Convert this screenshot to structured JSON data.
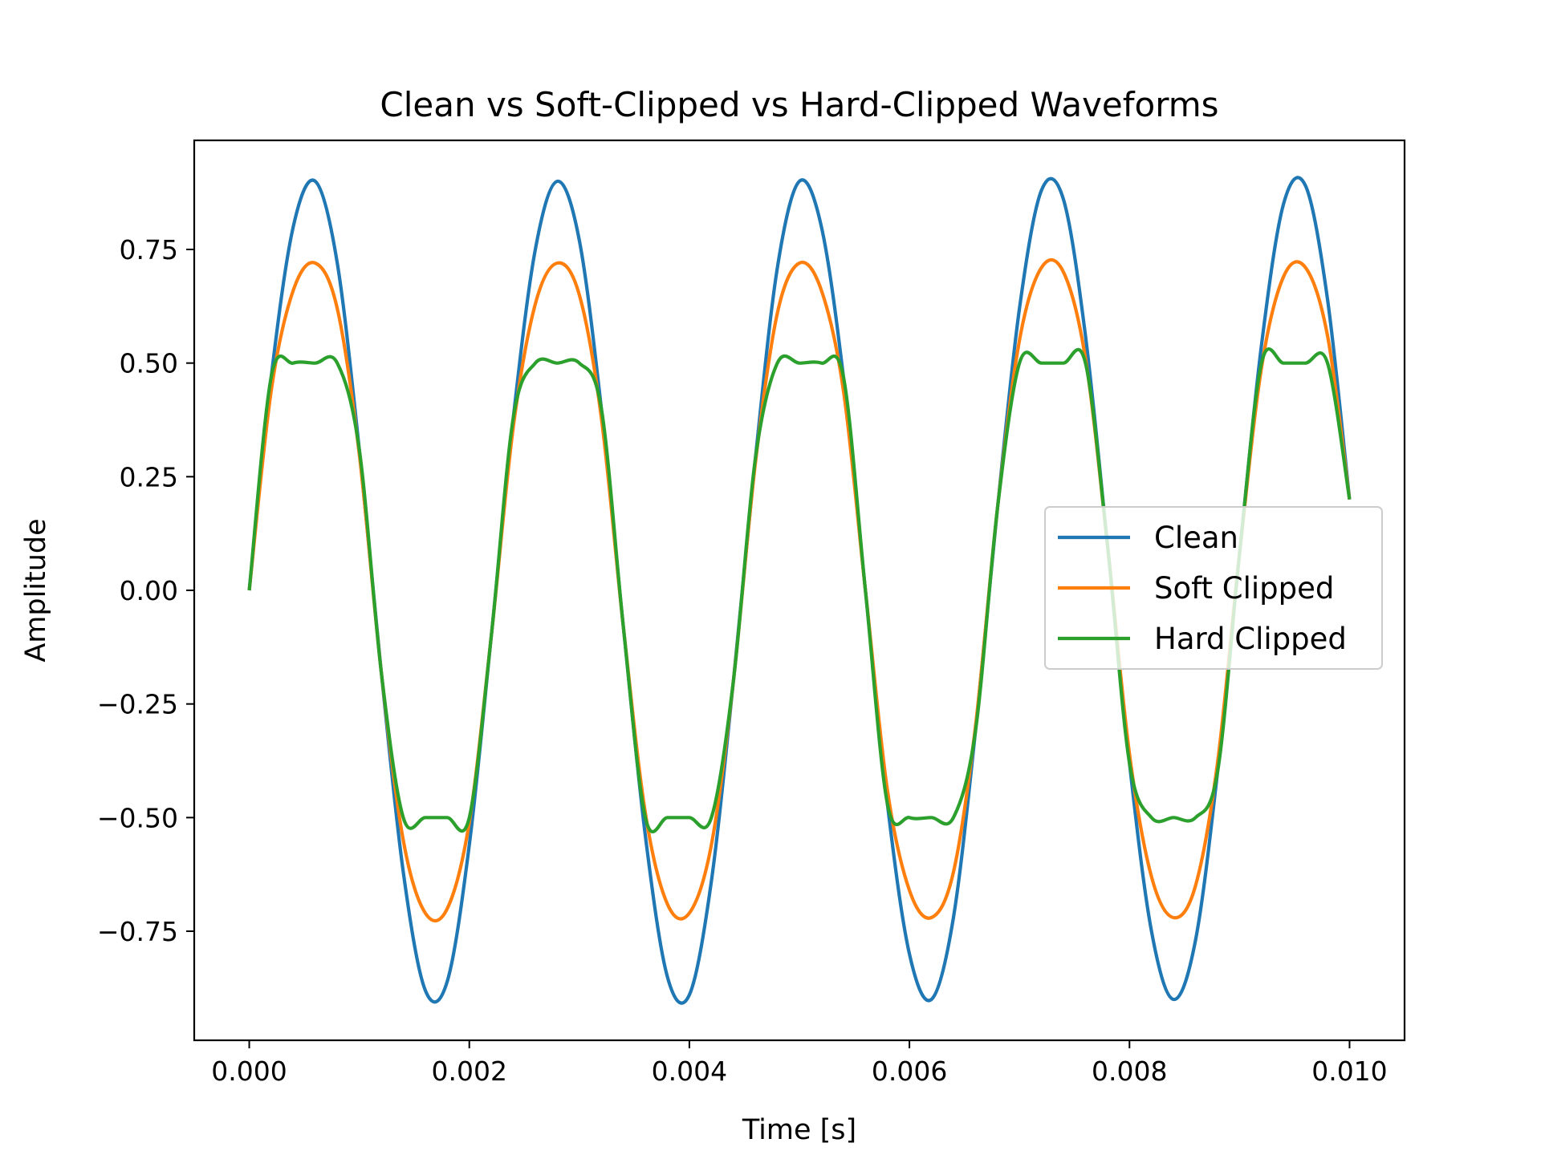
{
  "chart_data": {
    "type": "line",
    "title": "Clean vs Soft-Clipped vs Hard-Clipped Waveforms",
    "xlabel": "Time [s]",
    "ylabel": "Amplitude",
    "xlim": [
      -0.0005,
      0.0105
    ],
    "ylim": [
      -0.99,
      0.99
    ],
    "xticks": [
      0.0,
      0.002,
      0.004,
      0.006,
      0.008,
      0.01
    ],
    "xtick_labels": [
      "0.000",
      "0.002",
      "0.004",
      "0.006",
      "0.008",
      "0.010"
    ],
    "yticks": [
      -0.75,
      -0.5,
      -0.25,
      0.0,
      0.25,
      0.5,
      0.75
    ],
    "ytick_labels": [
      "−0.75",
      "−0.50",
      "−0.25",
      "0.00",
      "0.25",
      "0.50",
      "0.75"
    ],
    "grid": false,
    "legend_position": "center-right",
    "x": [
      0.0,
      0.0002,
      0.0004,
      0.0006,
      0.0008,
      0.001,
      0.0012,
      0.0014,
      0.0016,
      0.0018,
      0.002,
      0.0022,
      0.0024,
      0.0026,
      0.0028,
      0.003,
      0.0032,
      0.0034,
      0.0036,
      0.0038,
      0.004,
      0.0042,
      0.0044,
      0.0046,
      0.0048,
      0.005,
      0.0052,
      0.0054,
      0.0056,
      0.0058,
      0.006,
      0.0062,
      0.0064,
      0.0066,
      0.0068,
      0.007,
      0.0072,
      0.0074,
      0.0076,
      0.0078,
      0.008,
      0.0082,
      0.0084,
      0.0086,
      0.0088,
      0.009,
      0.0092,
      0.0094,
      0.0096,
      0.0098,
      0.01
    ],
    "series": [
      {
        "name": "Clean",
        "color": "#1f77b4",
        "values": [
          0.0,
          0.47,
          0.8,
          0.9,
          0.72,
          0.31,
          -0.18,
          -0.62,
          -0.88,
          -0.86,
          -0.56,
          -0.1,
          0.38,
          0.75,
          0.9,
          0.77,
          0.4,
          -0.08,
          -0.54,
          -0.85,
          -0.89,
          -0.64,
          -0.2,
          0.29,
          0.71,
          0.9,
          0.8,
          0.47,
          0.0,
          -0.47,
          -0.8,
          -0.9,
          -0.72,
          -0.31,
          0.18,
          0.62,
          0.88,
          0.86,
          0.56,
          0.1,
          -0.38,
          -0.75,
          -0.9,
          -0.77,
          -0.4,
          0.08,
          0.54,
          0.85,
          0.89,
          0.64,
          0.2
        ]
      },
      {
        "name": "Soft Clipped",
        "color": "#ff7f0e",
        "values": [
          0.0,
          0.44,
          0.66,
          0.72,
          0.62,
          0.3,
          -0.18,
          -0.55,
          -0.71,
          -0.7,
          -0.51,
          -0.1,
          0.36,
          0.63,
          0.72,
          0.65,
          0.38,
          -0.08,
          -0.49,
          -0.69,
          -0.71,
          -0.56,
          -0.2,
          0.28,
          0.61,
          0.72,
          0.66,
          0.44,
          0.0,
          -0.44,
          -0.66,
          -0.72,
          -0.62,
          -0.3,
          0.18,
          0.55,
          0.71,
          0.7,
          0.51,
          0.1,
          -0.36,
          -0.63,
          -0.72,
          -0.65,
          -0.38,
          0.08,
          0.49,
          0.69,
          0.71,
          0.56,
          0.2
        ]
      },
      {
        "name": "Hard Clipped",
        "color": "#2ca02c",
        "values": [
          0.0,
          0.47,
          0.5,
          0.5,
          0.5,
          0.31,
          -0.18,
          -0.5,
          -0.5,
          -0.5,
          -0.5,
          -0.1,
          0.38,
          0.5,
          0.5,
          0.5,
          0.4,
          -0.08,
          -0.5,
          -0.5,
          -0.5,
          -0.5,
          -0.2,
          0.29,
          0.5,
          0.5,
          0.5,
          0.47,
          0.0,
          -0.47,
          -0.5,
          -0.5,
          -0.5,
          -0.31,
          0.18,
          0.5,
          0.5,
          0.5,
          0.5,
          0.1,
          -0.38,
          -0.5,
          -0.5,
          -0.5,
          -0.4,
          0.08,
          0.5,
          0.5,
          0.5,
          0.5,
          0.2
        ]
      }
    ]
  }
}
